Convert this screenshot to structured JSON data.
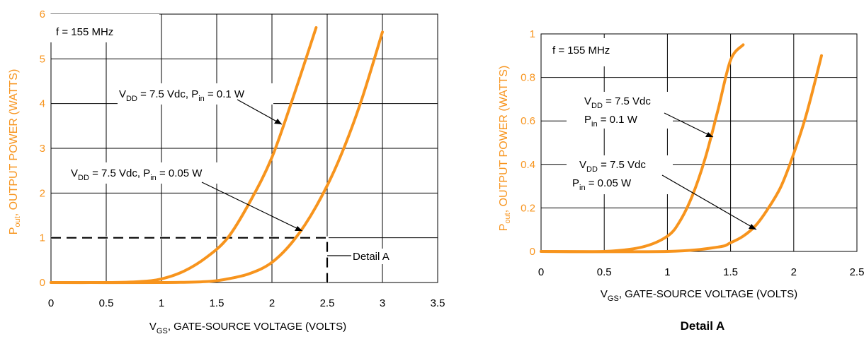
{
  "chart_data": [
    {
      "type": "line",
      "xlabel_main": "V",
      "xlabel_sub": "GS",
      "xlabel_rest": ", GATE-SOURCE VOLTAGE (VOLTS)",
      "ylabel_main": "P",
      "ylabel_sub": "out",
      "ylabel_rest": ", OUTPUT POWER (WATTS)",
      "xlim": [
        0,
        3.5
      ],
      "ylim": [
        0,
        6
      ],
      "xticks": [
        "0",
        "0.5",
        "1",
        "1.5",
        "2",
        "2.5",
        "3",
        "3.5"
      ],
      "yticks": [
        "0",
        "1",
        "2",
        "3",
        "4",
        "5",
        "6"
      ],
      "grid": true,
      "annotation_freq": "f = 155 MHz",
      "detail_label": "Detail A",
      "series": [
        {
          "label_parts": [
            "V",
            "DD",
            " = 7.5 Vdc, P",
            "in",
            " = 0.1 W"
          ],
          "x": [
            0,
            0.5,
            0.8,
            1.0,
            1.2,
            1.4,
            1.6,
            1.8,
            2.0,
            2.2,
            2.4
          ],
          "y": [
            0,
            0,
            0.02,
            0.08,
            0.25,
            0.55,
            1.0,
            1.8,
            2.8,
            4.2,
            5.7
          ]
        },
        {
          "label_parts": [
            "V",
            "DD",
            " = 7.5 Vdc, P",
            "in",
            " = 0.05 W"
          ],
          "x": [
            0,
            1.0,
            1.4,
            1.6,
            1.8,
            2.0,
            2.2,
            2.4,
            2.6,
            2.8,
            3.0
          ],
          "y": [
            0,
            0,
            0.02,
            0.08,
            0.2,
            0.45,
            0.95,
            1.7,
            2.7,
            4.0,
            5.6
          ]
        }
      ]
    },
    {
      "type": "line",
      "title": "Detail A",
      "xlabel_main": "V",
      "xlabel_sub": "GS",
      "xlabel_rest": ", GATE-SOURCE VOLTAGE (VOLTS)",
      "ylabel_main": "P",
      "ylabel_sub": "out",
      "ylabel_rest": ", OUTPUT POWER (WATTS)",
      "xlim": [
        0,
        2.5
      ],
      "ylim": [
        0,
        1
      ],
      "xticks": [
        "0",
        "0.5",
        "1",
        "1.5",
        "2",
        "2.5"
      ],
      "yticks": [
        "0",
        "0.2",
        "0.4",
        "0.6",
        "0.8",
        "1"
      ],
      "grid": true,
      "annotation_freq": "f = 155 MHz",
      "series": [
        {
          "label_line1": [
            "V",
            "DD",
            " = 7.5 Vdc"
          ],
          "label_line2": [
            "P",
            "in",
            " = 0.1 W"
          ],
          "x": [
            0,
            0.5,
            0.8,
            1.0,
            1.1,
            1.2,
            1.3,
            1.4,
            1.5,
            1.6
          ],
          "y": [
            0,
            0,
            0.02,
            0.07,
            0.14,
            0.26,
            0.43,
            0.65,
            0.88,
            0.95
          ]
        },
        {
          "label_line1": [
            "V",
            "DD",
            " = 7.5 Vdc"
          ],
          "label_line2": [
            "P",
            "in",
            " = 0.05 W"
          ],
          "x": [
            0,
            1.0,
            1.4,
            1.5,
            1.6,
            1.7,
            1.8,
            1.9,
            2.0,
            2.1,
            2.22
          ],
          "y": [
            0,
            0,
            0.02,
            0.04,
            0.07,
            0.12,
            0.2,
            0.3,
            0.45,
            0.63,
            0.9
          ]
        }
      ]
    }
  ]
}
